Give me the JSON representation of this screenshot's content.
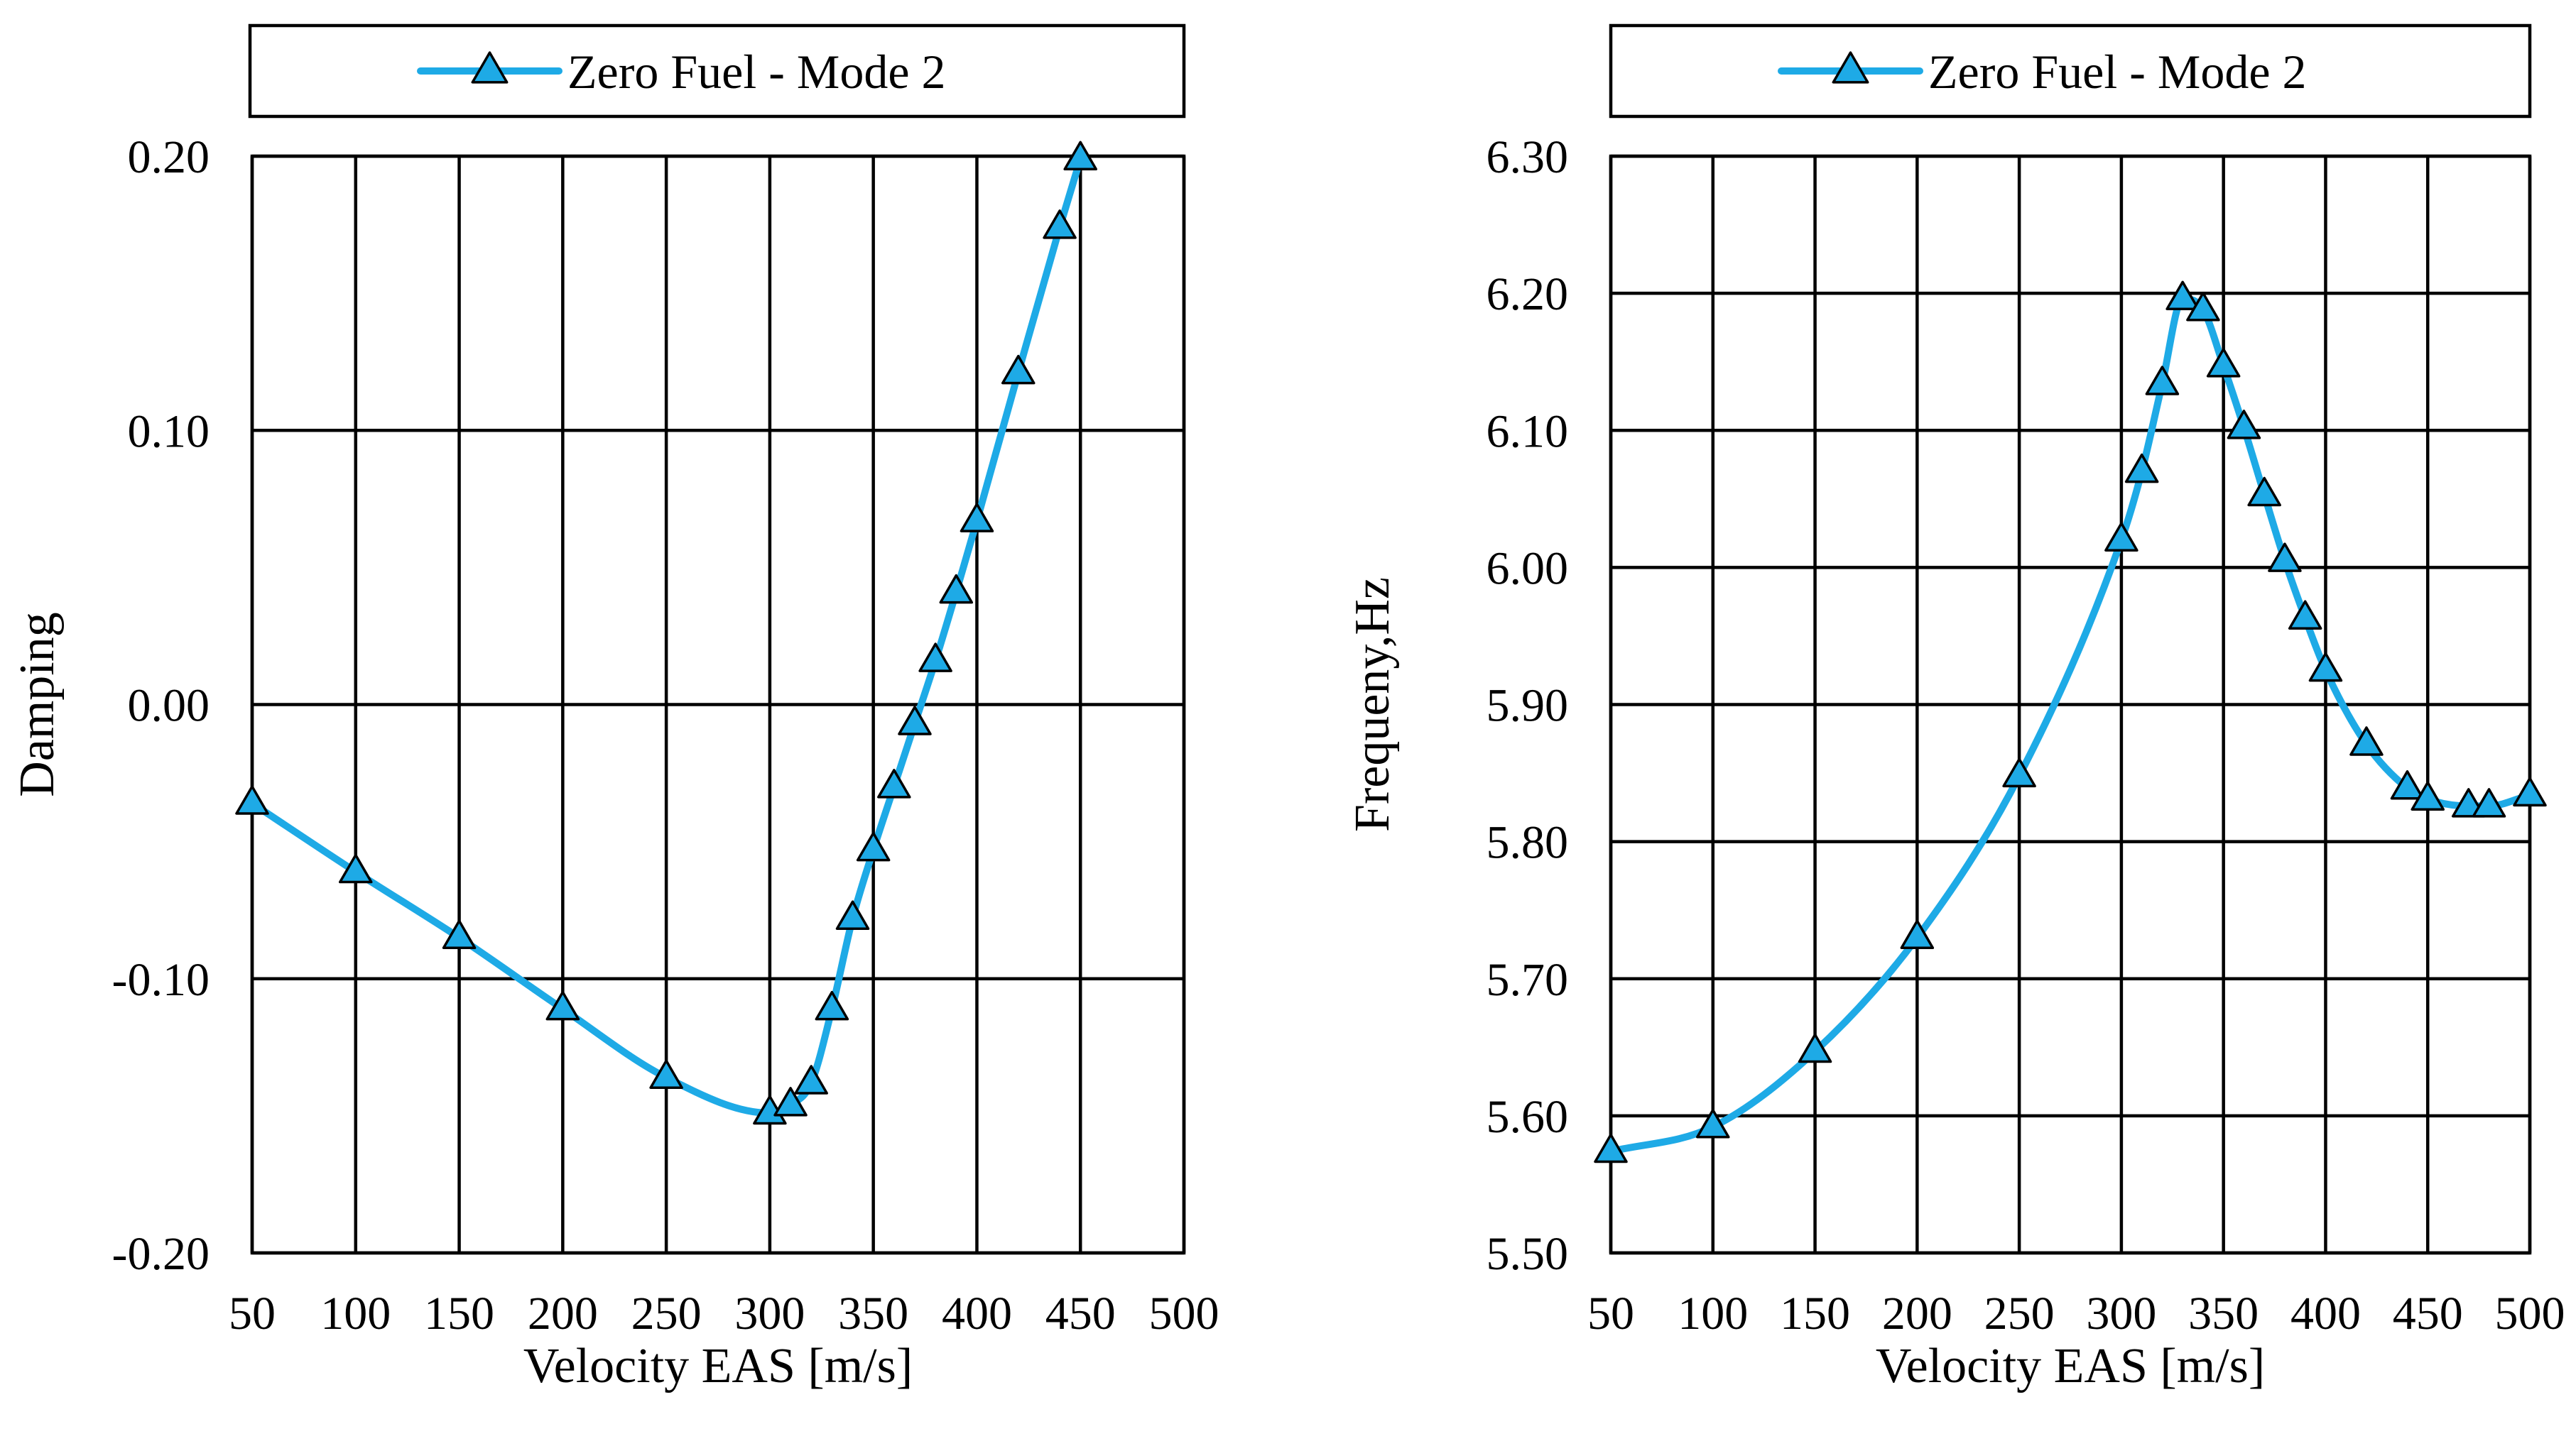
{
  "series_color": "#1EAAE6",
  "chart_data": [
    {
      "type": "line",
      "legend": "Zero Fuel - Mode 2",
      "xlabel": "Velocity EAS  [m/s]",
      "ylabel": "Damping",
      "xlim": [
        50,
        500
      ],
      "ylim": [
        -0.2,
        0.2
      ],
      "x_ticks": [
        "50",
        "100",
        "150",
        "200",
        "250",
        "300",
        "350",
        "400",
        "450",
        "500"
      ],
      "y_ticks": [
        "-0.20",
        "-0.10",
        "0.00",
        "0.10",
        "0.20"
      ],
      "series": [
        {
          "name": "Zero Fuel - Mode 2",
          "x": [
            50,
            100,
            150,
            200,
            250,
            300,
            310,
            320,
            330,
            340,
            350,
            360,
            370,
            380,
            390,
            400,
            420,
            440,
            450
          ],
          "y": [
            -0.036,
            -0.061,
            -0.085,
            -0.111,
            -0.136,
            -0.149,
            -0.146,
            -0.138,
            -0.111,
            -0.078,
            -0.053,
            -0.03,
            -0.007,
            0.016,
            0.041,
            0.067,
            0.121,
            0.174,
            0.199
          ]
        }
      ]
    },
    {
      "type": "line",
      "legend": "Zero Fuel - Mode 2",
      "xlabel": "Velocity EAS  [m/s]",
      "ylabel": "Frequeny,Hz",
      "xlim": [
        50,
        500
      ],
      "ylim": [
        5.5,
        6.3
      ],
      "x_ticks": [
        "50",
        "100",
        "150",
        "200",
        "250",
        "300",
        "350",
        "400",
        "450",
        "500"
      ],
      "y_ticks": [
        "5.50",
        "5.60",
        "5.70",
        "5.80",
        "5.90",
        "6.00",
        "6.10",
        "6.20",
        "6.30"
      ],
      "series": [
        {
          "name": "Zero Fuel - Mode 2",
          "x": [
            50,
            100,
            150,
            200,
            250,
            300,
            310,
            320,
            330,
            340,
            350,
            360,
            370,
            380,
            390,
            400,
            420,
            440,
            450,
            470,
            480,
            500
          ],
          "y": [
            5.574,
            5.592,
            5.647,
            5.73,
            5.848,
            6.02,
            6.07,
            6.134,
            6.196,
            6.188,
            6.147,
            6.102,
            6.053,
            6.005,
            5.963,
            5.925,
            5.871,
            5.839,
            5.831,
            5.826,
            5.826,
            5.834
          ]
        }
      ]
    }
  ]
}
